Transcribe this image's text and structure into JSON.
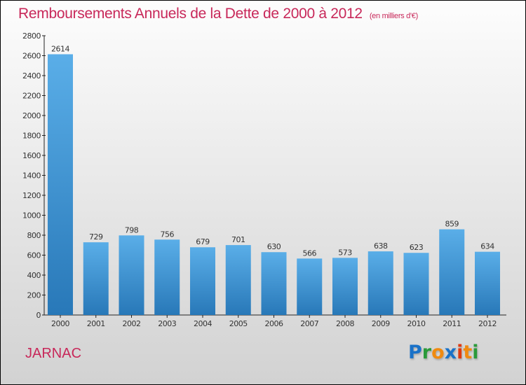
{
  "chart_data": {
    "type": "bar",
    "title": "Remboursements Annuels de la Dette de 2000 à 2012",
    "unit_label": "(en milliers d'€)",
    "categories": [
      "2000",
      "2001",
      "2002",
      "2003",
      "2004",
      "2005",
      "2006",
      "2007",
      "2008",
      "2009",
      "2010",
      "2011",
      "2012"
    ],
    "values": [
      2614,
      729,
      798,
      756,
      679,
      701,
      630,
      566,
      573,
      638,
      623,
      859,
      634
    ],
    "ylim": [
      0,
      2800
    ],
    "yticks": [
      0,
      200,
      400,
      600,
      800,
      1000,
      1200,
      1400,
      1600,
      1800,
      2000,
      2200,
      2400,
      2600,
      2800
    ],
    "xlabel": "",
    "ylabel": "",
    "grid": false
  },
  "city": "JARNAC",
  "logo": "Proxiti",
  "colors": {
    "title": "#c8285a",
    "bar_top": "#5aaee8",
    "bar_bottom": "#2878b8"
  }
}
